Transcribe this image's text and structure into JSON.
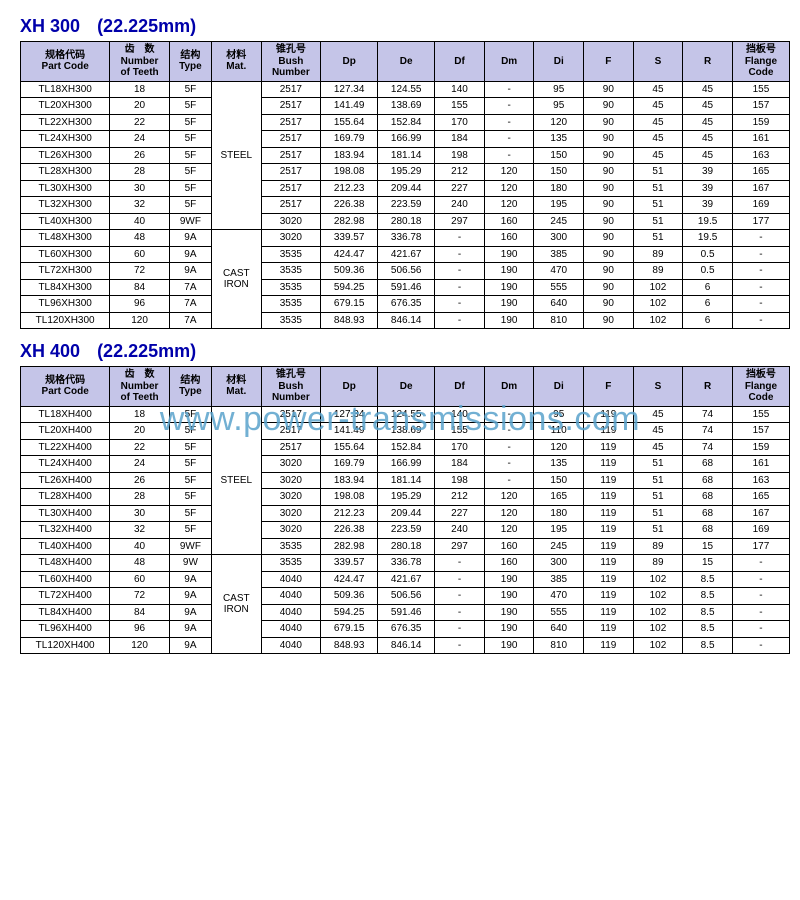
{
  "watermark": "www.power-transmissions.com",
  "headers": {
    "partCode": "规格代码\nPart Code",
    "teeth": "齿　数\nNumber\nof Teeth",
    "type": "结构\nType",
    "mat": "材料\nMat.",
    "bush": "锥孔号\nBush\nNumber",
    "dp": "Dp",
    "de": "De",
    "df": "Df",
    "dm": "Dm",
    "di": "Di",
    "f": "F",
    "s": "S",
    "r": "R",
    "flange": "挡板号\nFlange\nCode"
  },
  "table1": {
    "title_main": "XH 300",
    "title_sub": "(22.225mm)",
    "matGroups": [
      {
        "label": "STEEL",
        "span": 9
      },
      {
        "label": "CAST\nIRON",
        "span": 6
      }
    ],
    "rows": [
      [
        "TL18XH300",
        "18",
        "5F",
        "2517",
        "127.34",
        "124.55",
        "140",
        "-",
        "95",
        "90",
        "45",
        "45",
        "155"
      ],
      [
        "TL20XH300",
        "20",
        "5F",
        "2517",
        "141.49",
        "138.69",
        "155",
        "-",
        "95",
        "90",
        "45",
        "45",
        "157"
      ],
      [
        "TL22XH300",
        "22",
        "5F",
        "2517",
        "155.64",
        "152.84",
        "170",
        "-",
        "120",
        "90",
        "45",
        "45",
        "159"
      ],
      [
        "TL24XH300",
        "24",
        "5F",
        "2517",
        "169.79",
        "166.99",
        "184",
        "-",
        "135",
        "90",
        "45",
        "45",
        "161"
      ],
      [
        "TL26XH300",
        "26",
        "5F",
        "2517",
        "183.94",
        "181.14",
        "198",
        "-",
        "150",
        "90",
        "45",
        "45",
        "163"
      ],
      [
        "TL28XH300",
        "28",
        "5F",
        "2517",
        "198.08",
        "195.29",
        "212",
        "120",
        "150",
        "90",
        "51",
        "39",
        "165"
      ],
      [
        "TL30XH300",
        "30",
        "5F",
        "2517",
        "212.23",
        "209.44",
        "227",
        "120",
        "180",
        "90",
        "51",
        "39",
        "167"
      ],
      [
        "TL32XH300",
        "32",
        "5F",
        "2517",
        "226.38",
        "223.59",
        "240",
        "120",
        "195",
        "90",
        "51",
        "39",
        "169"
      ],
      [
        "TL40XH300",
        "40",
        "9WF",
        "3020",
        "282.98",
        "280.18",
        "297",
        "160",
        "245",
        "90",
        "51",
        "19.5",
        "177"
      ],
      [
        "TL48XH300",
        "48",
        "9A",
        "3020",
        "339.57",
        "336.78",
        "-",
        "160",
        "300",
        "90",
        "51",
        "19.5",
        "-"
      ],
      [
        "TL60XH300",
        "60",
        "9A",
        "3535",
        "424.47",
        "421.67",
        "-",
        "190",
        "385",
        "90",
        "89",
        "0.5",
        "-"
      ],
      [
        "TL72XH300",
        "72",
        "9A",
        "3535",
        "509.36",
        "506.56",
        "-",
        "190",
        "470",
        "90",
        "89",
        "0.5",
        "-"
      ],
      [
        "TL84XH300",
        "84",
        "7A",
        "3535",
        "594.25",
        "591.46",
        "-",
        "190",
        "555",
        "90",
        "102",
        "6",
        "-"
      ],
      [
        "TL96XH300",
        "96",
        "7A",
        "3535",
        "679.15",
        "676.35",
        "-",
        "190",
        "640",
        "90",
        "102",
        "6",
        "-"
      ],
      [
        "TL120XH300",
        "120",
        "7A",
        "3535",
        "848.93",
        "846.14",
        "-",
        "190",
        "810",
        "90",
        "102",
        "6",
        "-"
      ]
    ]
  },
  "table2": {
    "title_main": "XH 400",
    "title_sub": "(22.225mm)",
    "matGroups": [
      {
        "label": "STEEL",
        "span": 9
      },
      {
        "label": "CAST\nIRON",
        "span": 6
      }
    ],
    "rows": [
      [
        "TL18XH400",
        "18",
        "5F",
        "2517",
        "127.34",
        "124.55",
        "140",
        "-",
        "95",
        "119",
        "45",
        "74",
        "155"
      ],
      [
        "TL20XH400",
        "20",
        "5F",
        "2517",
        "141.49",
        "138.69",
        "155",
        "-",
        "110",
        "119",
        "45",
        "74",
        "157"
      ],
      [
        "TL22XH400",
        "22",
        "5F",
        "2517",
        "155.64",
        "152.84",
        "170",
        "-",
        "120",
        "119",
        "45",
        "74",
        "159"
      ],
      [
        "TL24XH400",
        "24",
        "5F",
        "3020",
        "169.79",
        "166.99",
        "184",
        "-",
        "135",
        "119",
        "51",
        "68",
        "161"
      ],
      [
        "TL26XH400",
        "26",
        "5F",
        "3020",
        "183.94",
        "181.14",
        "198",
        "-",
        "150",
        "119",
        "51",
        "68",
        "163"
      ],
      [
        "TL28XH400",
        "28",
        "5F",
        "3020",
        "198.08",
        "195.29",
        "212",
        "120",
        "165",
        "119",
        "51",
        "68",
        "165"
      ],
      [
        "TL30XH400",
        "30",
        "5F",
        "3020",
        "212.23",
        "209.44",
        "227",
        "120",
        "180",
        "119",
        "51",
        "68",
        "167"
      ],
      [
        "TL32XH400",
        "32",
        "5F",
        "3020",
        "226.38",
        "223.59",
        "240",
        "120",
        "195",
        "119",
        "51",
        "68",
        "169"
      ],
      [
        "TL40XH400",
        "40",
        "9WF",
        "3535",
        "282.98",
        "280.18",
        "297",
        "160",
        "245",
        "119",
        "89",
        "15",
        "177"
      ],
      [
        "TL48XH400",
        "48",
        "9W",
        "3535",
        "339.57",
        "336.78",
        "-",
        "160",
        "300",
        "119",
        "89",
        "15",
        "-"
      ],
      [
        "TL60XH400",
        "60",
        "9A",
        "4040",
        "424.47",
        "421.67",
        "-",
        "190",
        "385",
        "119",
        "102",
        "8.5",
        "-"
      ],
      [
        "TL72XH400",
        "72",
        "9A",
        "4040",
        "509.36",
        "506.56",
        "-",
        "190",
        "470",
        "119",
        "102",
        "8.5",
        "-"
      ],
      [
        "TL84XH400",
        "84",
        "9A",
        "4040",
        "594.25",
        "591.46",
        "-",
        "190",
        "555",
        "119",
        "102",
        "8.5",
        "-"
      ],
      [
        "TL96XH400",
        "96",
        "9A",
        "4040",
        "679.15",
        "676.35",
        "-",
        "190",
        "640",
        "119",
        "102",
        "8.5",
        "-"
      ],
      [
        "TL120XH400",
        "120",
        "9A",
        "4040",
        "848.93",
        "846.14",
        "-",
        "190",
        "810",
        "119",
        "102",
        "8.5",
        "-"
      ]
    ]
  }
}
